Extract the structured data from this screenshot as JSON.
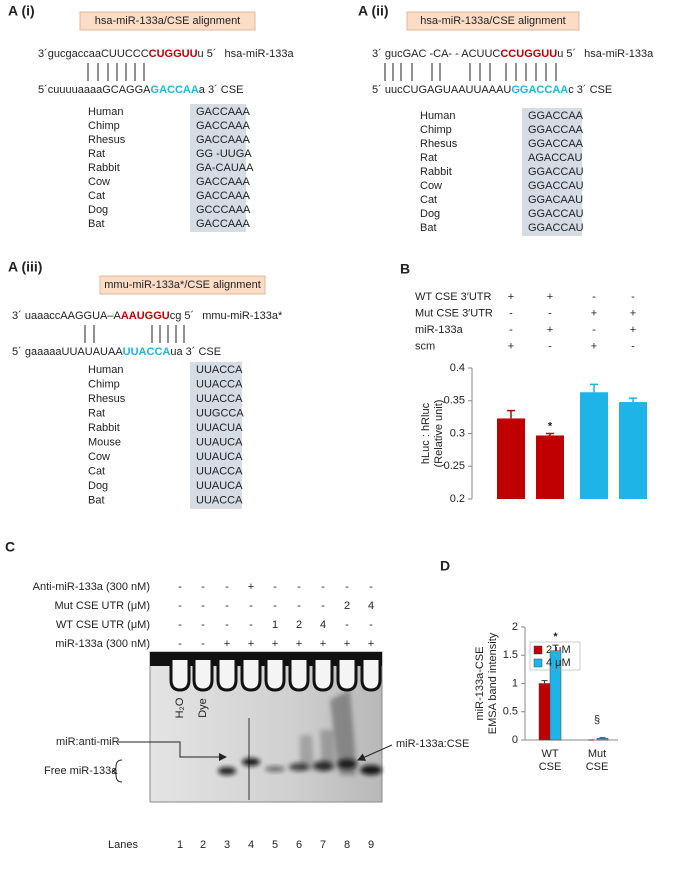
{
  "alignments": [
    {
      "label": "A (i)",
      "title": "hsa-miR-133a/CSE  alignment",
      "mirna_line": [
        "3´gucgaccaaCUUCCC",
        "CUGGUU",
        "u 5´"
      ],
      "mirna_name": "hsa-miR-133a",
      "target_line": [
        "5´cuuuuaaaaGCAGGA",
        "GACCAA",
        "a 3´ CSE"
      ],
      "species": [
        "Human",
        "Chimp",
        "Rhesus",
        "Rat",
        "Rabbit",
        "Cow",
        "Cat",
        "Dog",
        "Bat"
      ],
      "sequences": [
        "GACCAAA",
        "GACCAAA",
        "GACCAAA",
        "GG -UUGA",
        "GA-CAUAA",
        "GACCAAA",
        "GACCAAA",
        "GCCCAAA",
        "GACCAAA"
      ]
    },
    {
      "label": "A (ii)",
      "title": "hsa-miR-133a/CSE  alignment",
      "mirna_line": [
        "3´ gucGAC  -CA- - ACUUC",
        "CCUGGUU",
        "u 5´"
      ],
      "mirna_name": "hsa-miR-133a",
      "target_line": [
        "5´ uucCUGAGUAAUUAAAU",
        "GGACCAA",
        "c  3´ CSE"
      ],
      "species": [
        "Human",
        "Chimp",
        "Rhesus",
        "Rat",
        "Rabbit",
        "Cow",
        "Cat",
        "Dog",
        "Bat"
      ],
      "sequences": [
        "GGACCAA",
        "GGACCAA",
        "GGACCAA",
        "AGACCAU",
        "GGACCAU",
        "GGACCAU",
        "GGACAAU",
        "GGACCAU",
        "GGACCAU"
      ]
    },
    {
      "label": "A (iii)",
      "title": "mmu-miR-133a*/CSE  alignment",
      "mirna_line": [
        "3´  uaaaccAAGGUA–A",
        "AAUGGU",
        "cg 5´"
      ],
      "mirna_name": "mmu-miR-133a*",
      "target_line": [
        "5´  gaaaaaUUAUAUAA",
        "UUACCA",
        "ua 3´ CSE"
      ],
      "species": [
        "Human",
        "Chimp",
        "Rhesus",
        "Rat",
        "Rabbit",
        "Mouse",
        "Cow",
        "Cat",
        "Dog",
        "Bat"
      ],
      "sequences": [
        "UUACCA",
        "UUACCA",
        "UUACCA",
        "UUGCCA",
        "UUACUA",
        "UUAUCA",
        "UUAUCA",
        "UUACCA",
        "UUAUCA",
        "UUACCA"
      ]
    }
  ],
  "chart_data": [
    {
      "type": "bar",
      "panel_label": "B",
      "conditions": [
        {
          "label": "WT CSE 3′UTR",
          "cells": [
            "+",
            "+",
            "-",
            "-"
          ]
        },
        {
          "label": "Mut CSE 3′UTR",
          "cells": [
            "-",
            "-",
            "+",
            "+"
          ]
        },
        {
          "label": "miR-133a",
          "cells": [
            "-",
            "+",
            "-",
            "+"
          ]
        },
        {
          "label": "scm",
          "cells": [
            "+",
            "-",
            "+",
            "-"
          ]
        }
      ],
      "ylabel": [
        "hLuc : hRluc",
        "(Relative unit)"
      ],
      "values": [
        0.323,
        0.297,
        0.363,
        0.348
      ],
      "errors": [
        0.012,
        0.003,
        0.012,
        0.006
      ],
      "colors": [
        "#c00000",
        "#c00000",
        "#1eb4e8",
        "#1eb4e8"
      ],
      "significance": [
        null,
        "*",
        null,
        null
      ],
      "ylim": [
        0.2,
        0.4
      ],
      "yticks": [
        0.2,
        0.25,
        0.3,
        0.35,
        0.4
      ]
    },
    {
      "type": "grouped_bar",
      "panel_label": "D",
      "ylabel": [
        "miR-133a-CSE",
        "EMSA band intensity"
      ],
      "categories": [
        "WT CSE",
        "Mut CSE"
      ],
      "series": [
        {
          "name": "2 μM",
          "color": "#c00000",
          "values": [
            1.0,
            0
          ],
          "errors": [
            0.05,
            0
          ]
        },
        {
          "name": "4 μM",
          "color": "#1eb4e8",
          "values": [
            1.58,
            0.03
          ],
          "errors": [
            0.1,
            0.01
          ]
        }
      ],
      "significance": [
        "*",
        null
      ],
      "category_notes": [
        null,
        "§"
      ],
      "ylim": [
        0,
        2
      ],
      "yticks": [
        0,
        0.5,
        1,
        1.5,
        2
      ],
      "legend": "upper-left"
    }
  ],
  "gel": {
    "panel_label": "C",
    "conditions": [
      {
        "label": "Anti-miR-133a (300 nM)",
        "cells": [
          "-",
          "-",
          "-",
          "+",
          "-",
          "-",
          "-",
          "-",
          "-"
        ]
      },
      {
        "label": "Mut CSE UTR (μM)",
        "cells": [
          "-",
          "-",
          "-",
          "-",
          "-",
          "-",
          "-",
          "2",
          "4"
        ]
      },
      {
        "label": "WT CSE UTR (μM)",
        "cells": [
          "-",
          "-",
          "-",
          "-",
          "1",
          "2",
          "4",
          "-",
          "-"
        ]
      },
      {
        "label": "miR-133a (300 nM)",
        "cells": [
          "-",
          "-",
          "+",
          "+",
          "+",
          "+",
          "+",
          "+",
          "+"
        ]
      }
    ],
    "lane_names": [
      "H₂O",
      "Dye"
    ],
    "lanes_label": "Lanes",
    "lanes": [
      "1",
      "2",
      "3",
      "4",
      "5",
      "6",
      "7",
      "8",
      "9"
    ],
    "annotations": {
      "anti": "miR:anti-miR",
      "free": "Free miR-133a",
      "complex": "miR-133a:CSE"
    }
  }
}
